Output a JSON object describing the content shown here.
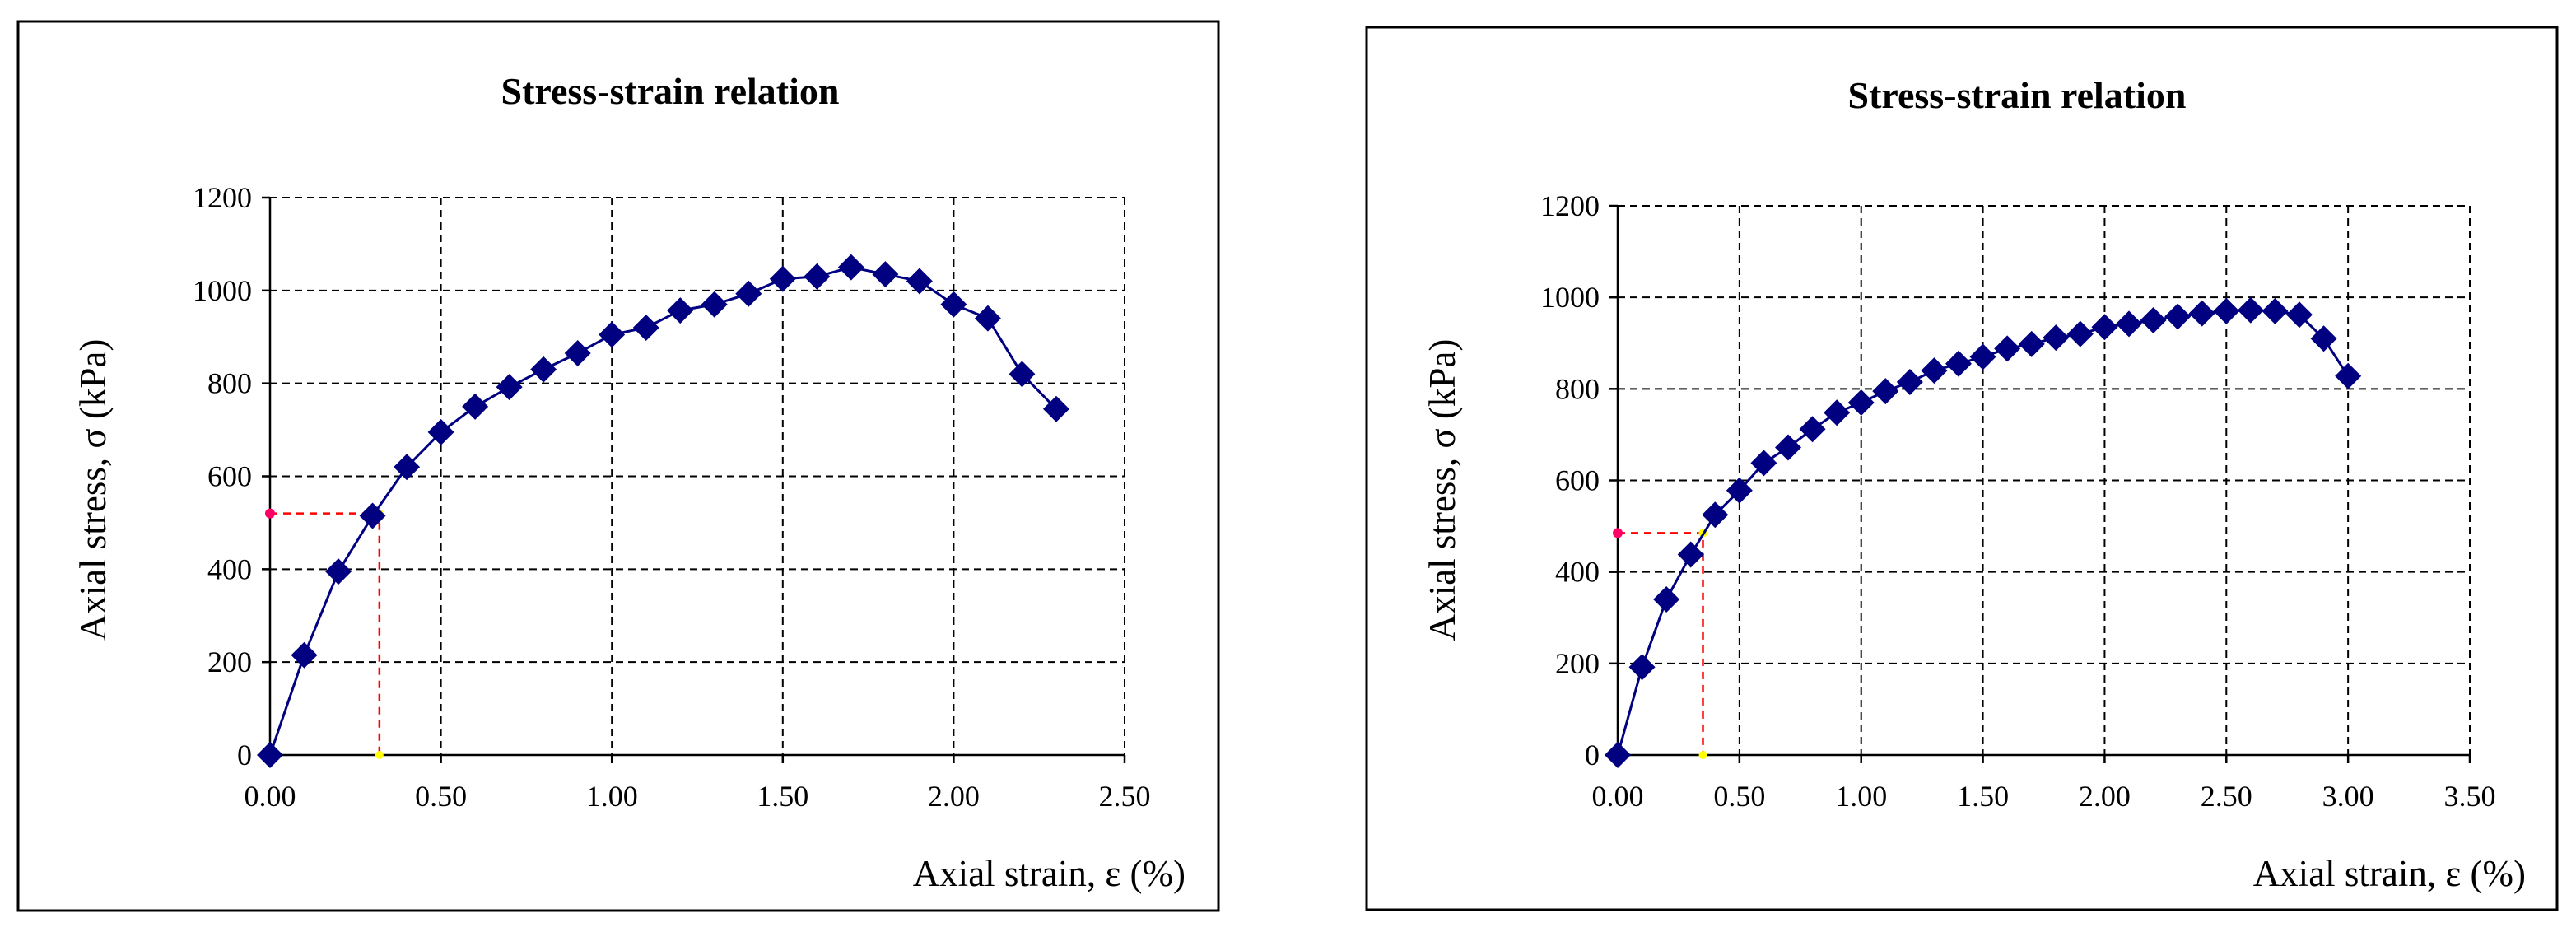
{
  "chart_data": [
    {
      "type": "line",
      "title": "Stress-strain relation",
      "xlabel": "Axial strain, ε (%)",
      "ylabel": "Axial stress, σ (kPa)",
      "xlim": [
        0,
        2.5
      ],
      "ylim": [
        0,
        1200
      ],
      "x_ticks": [
        "0.00",
        "0.50",
        "1.00",
        "1.50",
        "2.00",
        "2.50"
      ],
      "y_ticks": [
        "0",
        "200",
        "400",
        "600",
        "800",
        "1000",
        "1200"
      ],
      "grid": true,
      "series": [
        {
          "name": "Axial stress",
          "color": "#000080",
          "marker": "diamond",
          "x": [
            0,
            0.1,
            0.2,
            0.3,
            0.4,
            0.5,
            0.6,
            0.7,
            0.8,
            0.9,
            1.0,
            1.1,
            1.2,
            1.3,
            1.4,
            1.5,
            1.6,
            1.7,
            1.8,
            1.9,
            2.0,
            2.1,
            2.2,
            2.3
          ],
          "y": [
            0,
            215,
            395,
            515,
            620,
            695,
            750,
            792,
            830,
            865,
            905,
            920,
            957,
            970,
            993,
            1025,
            1030,
            1050,
            1035,
            1020,
            970,
            940,
            820,
            745
          ]
        }
      ],
      "guide": {
        "x": 0.32,
        "y": 520,
        "color": "#ff0000"
      }
    },
    {
      "type": "line",
      "title": "Stress-strain relation",
      "xlabel": "Axial strain, ε (%)",
      "ylabel": "Axial stress, σ (kPa)",
      "xlim": [
        0,
        3.5
      ],
      "ylim": [
        0,
        1200
      ],
      "x_ticks": [
        "0.00",
        "0.50",
        "1.00",
        "1.50",
        "2.00",
        "2.50",
        "3.00",
        "3.50"
      ],
      "y_ticks": [
        "0",
        "200",
        "400",
        "600",
        "800",
        "1000",
        "1200"
      ],
      "grid": true,
      "series": [
        {
          "name": "Axial stress",
          "color": "#000080",
          "marker": "diamond",
          "x": [
            0,
            0.1,
            0.2,
            0.3,
            0.4,
            0.5,
            0.6,
            0.7,
            0.8,
            0.9,
            1.0,
            1.1,
            1.2,
            1.3,
            1.4,
            1.5,
            1.6,
            1.7,
            1.8,
            1.9,
            2.0,
            2.1,
            2.2,
            2.3,
            2.4,
            2.5,
            2.6,
            2.7,
            2.8,
            2.9,
            3.0
          ],
          "y": [
            0,
            192,
            340,
            438,
            525,
            578,
            638,
            672,
            712,
            748,
            770,
            795,
            815,
            840,
            855,
            870,
            888,
            898,
            912,
            920,
            935,
            942,
            950,
            958,
            965,
            970,
            972,
            970,
            962,
            910,
            828
          ]
        }
      ],
      "guide": {
        "x": 0.35,
        "y": 485,
        "color": "#ff0000"
      }
    }
  ]
}
